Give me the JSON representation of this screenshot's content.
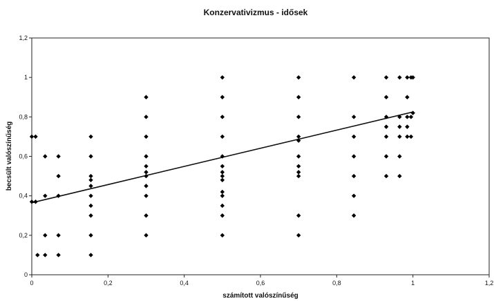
{
  "chart_data": {
    "type": "scatter",
    "title": "Konzervativizmus - idősek",
    "xlabel": "számított valószínűség",
    "ylabel": "becsült valószínűség",
    "xlim": [
      0,
      1.2
    ],
    "ylim": [
      0,
      1.2
    ],
    "x_ticks": [
      "0",
      "0,2",
      "0,4",
      "0,6",
      "0,8",
      "1",
      "1,2"
    ],
    "y_ticks": [
      "0",
      "0,2",
      "0,4",
      "0,6",
      "0,8",
      "1",
      "1,2"
    ],
    "grid": false,
    "legend": "none",
    "marker_color": "#000000",
    "points": [
      {
        "x": 0.0,
        "y": 0.7
      },
      {
        "x": 0.01,
        "y": 0.7
      },
      {
        "x": 0.0,
        "y": 0.37
      },
      {
        "x": 0.01,
        "y": 0.37
      },
      {
        "x": 0.015,
        "y": 0.1
      },
      {
        "x": 0.035,
        "y": 0.1
      },
      {
        "x": 0.035,
        "y": 0.2
      },
      {
        "x": 0.035,
        "y": 0.6
      },
      {
        "x": 0.035,
        "y": 0.4
      },
      {
        "x": 0.07,
        "y": 0.6
      },
      {
        "x": 0.07,
        "y": 0.5
      },
      {
        "x": 0.07,
        "y": 0.4
      },
      {
        "x": 0.07,
        "y": 0.2
      },
      {
        "x": 0.07,
        "y": 0.1
      },
      {
        "x": 0.155,
        "y": 0.7
      },
      {
        "x": 0.155,
        "y": 0.6
      },
      {
        "x": 0.155,
        "y": 0.5
      },
      {
        "x": 0.155,
        "y": 0.48
      },
      {
        "x": 0.155,
        "y": 0.45
      },
      {
        "x": 0.155,
        "y": 0.4
      },
      {
        "x": 0.155,
        "y": 0.35
      },
      {
        "x": 0.155,
        "y": 0.3
      },
      {
        "x": 0.155,
        "y": 0.2
      },
      {
        "x": 0.155,
        "y": 0.1
      },
      {
        "x": 0.3,
        "y": 0.9
      },
      {
        "x": 0.3,
        "y": 0.8
      },
      {
        "x": 0.3,
        "y": 0.7
      },
      {
        "x": 0.3,
        "y": 0.6
      },
      {
        "x": 0.3,
        "y": 0.55
      },
      {
        "x": 0.3,
        "y": 0.52
      },
      {
        "x": 0.3,
        "y": 0.5
      },
      {
        "x": 0.3,
        "y": 0.45
      },
      {
        "x": 0.3,
        "y": 0.4
      },
      {
        "x": 0.3,
        "y": 0.3
      },
      {
        "x": 0.3,
        "y": 0.2
      },
      {
        "x": 0.5,
        "y": 1.0
      },
      {
        "x": 0.5,
        "y": 0.9
      },
      {
        "x": 0.5,
        "y": 0.8
      },
      {
        "x": 0.5,
        "y": 0.7
      },
      {
        "x": 0.5,
        "y": 0.6
      },
      {
        "x": 0.5,
        "y": 0.55
      },
      {
        "x": 0.5,
        "y": 0.52
      },
      {
        "x": 0.5,
        "y": 0.5
      },
      {
        "x": 0.5,
        "y": 0.48
      },
      {
        "x": 0.5,
        "y": 0.42
      },
      {
        "x": 0.5,
        "y": 0.4
      },
      {
        "x": 0.5,
        "y": 0.35
      },
      {
        "x": 0.5,
        "y": 0.3
      },
      {
        "x": 0.5,
        "y": 0.2
      },
      {
        "x": 0.7,
        "y": 1.0
      },
      {
        "x": 0.7,
        "y": 0.9
      },
      {
        "x": 0.7,
        "y": 0.8
      },
      {
        "x": 0.7,
        "y": 0.7
      },
      {
        "x": 0.7,
        "y": 0.68
      },
      {
        "x": 0.7,
        "y": 0.6
      },
      {
        "x": 0.7,
        "y": 0.55
      },
      {
        "x": 0.7,
        "y": 0.52
      },
      {
        "x": 0.7,
        "y": 0.5
      },
      {
        "x": 0.7,
        "y": 0.3
      },
      {
        "x": 0.7,
        "y": 0.2
      },
      {
        "x": 0.845,
        "y": 1.0
      },
      {
        "x": 0.845,
        "y": 0.8
      },
      {
        "x": 0.845,
        "y": 0.7
      },
      {
        "x": 0.845,
        "y": 0.6
      },
      {
        "x": 0.845,
        "y": 0.5
      },
      {
        "x": 0.845,
        "y": 0.4
      },
      {
        "x": 0.845,
        "y": 0.3
      },
      {
        "x": 0.93,
        "y": 1.0
      },
      {
        "x": 0.93,
        "y": 0.9
      },
      {
        "x": 0.93,
        "y": 0.8
      },
      {
        "x": 0.93,
        "y": 0.75
      },
      {
        "x": 0.93,
        "y": 0.7
      },
      {
        "x": 0.93,
        "y": 0.6
      },
      {
        "x": 0.93,
        "y": 0.5
      },
      {
        "x": 0.965,
        "y": 1.0
      },
      {
        "x": 0.965,
        "y": 0.8
      },
      {
        "x": 0.965,
        "y": 0.75
      },
      {
        "x": 0.965,
        "y": 0.7
      },
      {
        "x": 0.965,
        "y": 0.6
      },
      {
        "x": 0.965,
        "y": 0.5
      },
      {
        "x": 0.985,
        "y": 1.0
      },
      {
        "x": 0.985,
        "y": 0.9
      },
      {
        "x": 0.985,
        "y": 0.8
      },
      {
        "x": 0.985,
        "y": 0.75
      },
      {
        "x": 0.985,
        "y": 0.7
      },
      {
        "x": 0.995,
        "y": 1.0
      },
      {
        "x": 0.995,
        "y": 0.8
      },
      {
        "x": 0.995,
        "y": 0.7
      },
      {
        "x": 1.0,
        "y": 1.0
      },
      {
        "x": 1.0,
        "y": 0.82
      }
    ],
    "trendline": {
      "type": "linear",
      "x": [
        0,
        1
      ],
      "y": [
        0.365,
        0.825
      ]
    }
  }
}
